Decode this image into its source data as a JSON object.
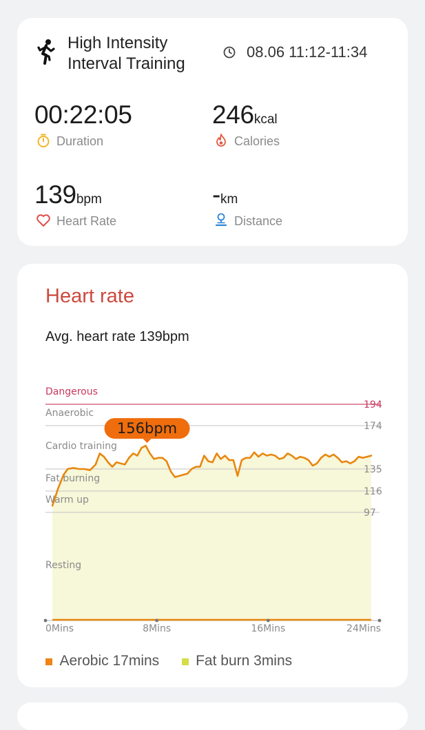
{
  "summary": {
    "activity": "High Intensity Interval Training",
    "time_range": "08.06 11:12-11:34",
    "duration_value": "00:22:05",
    "duration_label": "Duration",
    "calories_value": "246",
    "calories_unit": "kcal",
    "calories_label": "Calories",
    "heart_value": "139",
    "heart_unit": "bpm",
    "heart_label": "Heart Rate",
    "distance_value": "-",
    "distance_unit": "km",
    "distance_label": "Distance",
    "icons": {
      "activity": "runner-icon",
      "clock": "clock-icon",
      "duration": "stopwatch-icon",
      "calories": "flame-icon",
      "heart": "heart-icon",
      "distance": "location-pin-icon"
    },
    "colors": {
      "duration": "#f2b62a",
      "calories": "#e25a42",
      "heart": "#e14b4b",
      "distance": "#2f86d6"
    }
  },
  "heart_section": {
    "title": "Heart rate",
    "avg_text": "Avg. heart rate 139bpm",
    "legend": [
      {
        "label": "Aerobic 17mins",
        "color": "#f08416"
      },
      {
        "label": "Fat burn 3mins",
        "color": "#d4dd47"
      }
    ]
  },
  "chart_data": {
    "type": "area",
    "xlabel": "",
    "ylabel": "",
    "x_ticks": [
      "0Mins",
      "8Mins",
      "16Mins",
      "24Mins"
    ],
    "xlim": [
      0,
      24
    ],
    "zones": [
      {
        "name": "Dangerous",
        "threshold": 194,
        "color": "#c8385e"
      },
      {
        "name": "Anaerobic",
        "threshold": 174
      },
      {
        "name": "Cardio training",
        "threshold": 135
      },
      {
        "name": "Fat burning",
        "threshold": 116
      },
      {
        "name": "Warm up",
        "threshold": 97
      },
      {
        "name": "Resting"
      }
    ],
    "tick_values": [
      "194",
      "174",
      "135",
      "116",
      "97"
    ],
    "max_label": "156bpm",
    "max_value": 156,
    "max_time": 7.3,
    "series": [
      {
        "color": "#e8870f",
        "x": [
          0.5,
          0.9,
          1.3,
          1.6,
          2.0,
          2.4,
          2.8,
          3.2,
          3.6,
          3.9,
          4.2,
          4.5,
          4.8,
          5.1,
          5.4,
          5.7,
          6.0,
          6.3,
          6.6,
          6.9,
          7.2,
          7.5,
          7.8,
          8.1,
          8.4,
          8.7,
          9.0,
          9.3,
          9.6,
          9.9,
          10.2,
          10.5,
          10.8,
          11.1,
          11.4,
          11.7,
          12.0,
          12.3,
          12.6,
          12.9,
          13.2,
          13.5,
          13.8,
          14.1,
          14.4,
          14.7,
          15.0,
          15.3,
          15.6,
          15.9,
          16.2,
          16.5,
          16.8,
          17.1,
          17.4,
          17.7,
          18.0,
          18.3,
          18.6,
          18.9,
          19.2,
          19.5,
          19.8,
          20.1,
          20.4,
          20.7,
          21.0,
          21.3,
          21.6,
          21.9,
          22.2,
          22.5,
          22.8,
          23.1,
          23.4
        ],
        "values": [
          103,
          118,
          130,
          135,
          136,
          135,
          135,
          134,
          139,
          149,
          146,
          141,
          137,
          141,
          140,
          139,
          145,
          149,
          147,
          154,
          156,
          149,
          144,
          145,
          145,
          142,
          133,
          128,
          129,
          130,
          131,
          135,
          137,
          137,
          147,
          142,
          141,
          149,
          144,
          147,
          143,
          143,
          129,
          143,
          145,
          145,
          150,
          146,
          149,
          147,
          148,
          147,
          144,
          145,
          149,
          147,
          144,
          146,
          145,
          143,
          138,
          140,
          145,
          148,
          146,
          148,
          145,
          141,
          142,
          140,
          142,
          146,
          145,
          146,
          147
        ]
      }
    ]
  }
}
